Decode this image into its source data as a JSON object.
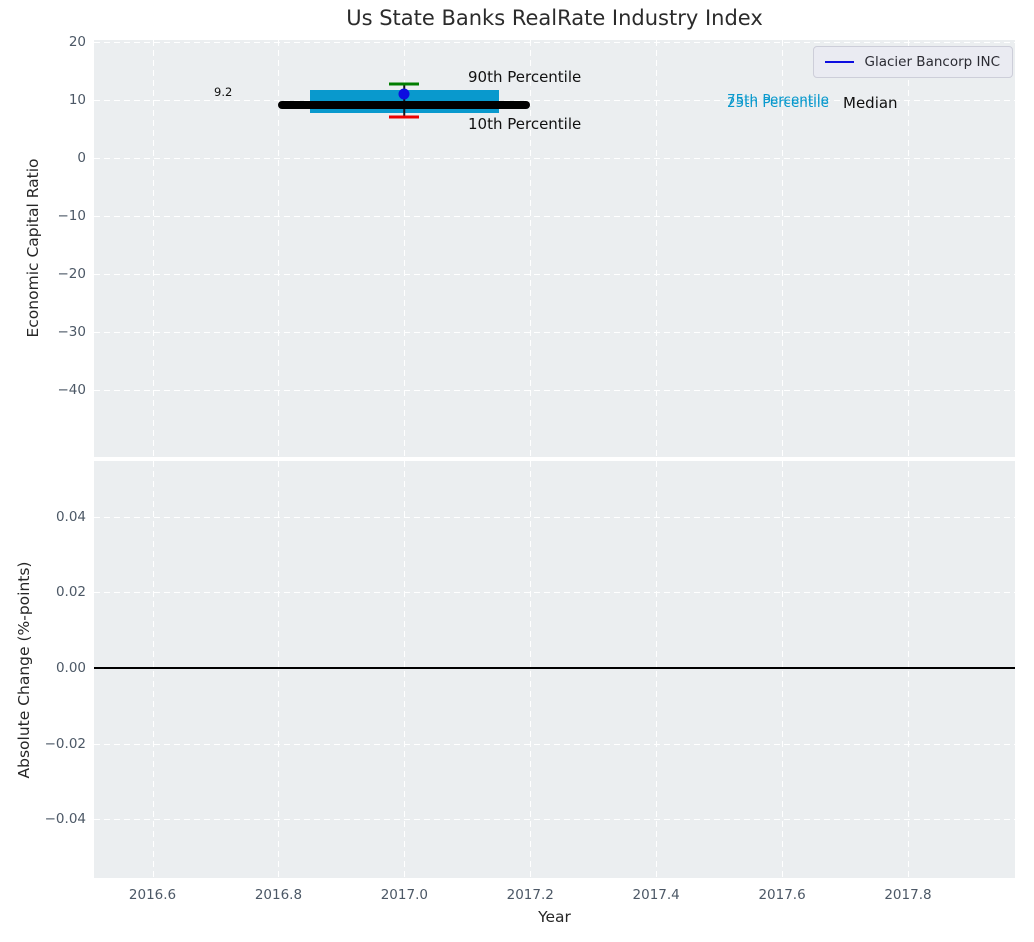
{
  "annotations_note": "all visible text lives below",
  "chart_data": [
    {
      "type": "box",
      "subplot": "top",
      "title": "Us State Banks RealRate Industry Index",
      "ylabel": "Economic Capital Ratio",
      "xlabel": "Year",
      "xlim": [
        2016.507,
        2017.97
      ],
      "ylim": [
        -51.5,
        20.35
      ],
      "xticks": [
        2016.6,
        2016.8,
        2017.0,
        2017.2,
        2017.4,
        2017.6,
        2017.8
      ],
      "xtick_labels": [
        "2016.6",
        "2016.8",
        "2017.0",
        "2017.2",
        "2017.4",
        "2017.6",
        "2017.8"
      ],
      "yticks": [
        20,
        10,
        0,
        -10,
        -20,
        -30,
        -40
      ],
      "ytick_labels": [
        "20",
        "10",
        "0",
        "−10",
        "−20",
        "−30",
        "−40"
      ],
      "grid": "white-dashed",
      "industry": {
        "year": 2017.0,
        "median": 9.2,
        "median_x_span": [
          2016.8,
          2017.2
        ],
        "p25": 7.8,
        "p75": 11.8,
        "box_x_span": [
          2016.85,
          2017.15
        ],
        "p10": 7.1,
        "p90": 12.7,
        "cap_half_width": 0.024
      },
      "series": [
        {
          "name": "Glacier Bancorp INC",
          "type": "point",
          "color": "#0d0de0",
          "x": [
            2017.0
          ],
          "y": [
            11.0
          ]
        }
      ],
      "legend": {
        "position": "upper right",
        "entries": [
          "Glacier Bancorp INC"
        ]
      },
      "annotations": {
        "p90": "90th Percentile",
        "p10": "10th Percentile",
        "p75": "75th Percentile",
        "p25": "25th Percentile",
        "median": "Median",
        "median_value": "9.2"
      }
    },
    {
      "type": "line",
      "subplot": "bottom",
      "ylabel": "Absolute Change (%-points)",
      "xlabel": "Year",
      "xlim": [
        2016.507,
        2017.97
      ],
      "ylim": [
        -0.0555,
        0.0547
      ],
      "xticks": [
        2016.6,
        2016.8,
        2017.0,
        2017.2,
        2017.4,
        2017.6,
        2017.8
      ],
      "xtick_labels": [
        "2016.6",
        "2016.8",
        "2017.0",
        "2017.2",
        "2017.4",
        "2017.6",
        "2017.8"
      ],
      "yticks": [
        0.04,
        0.02,
        0.0,
        -0.02,
        -0.04
      ],
      "ytick_labels": [
        "0.04",
        "0.02",
        "0.00",
        "−0.02",
        "−0.04"
      ],
      "hline": 0.0,
      "series": [],
      "grid": "white-dashed"
    }
  ],
  "colors": {
    "plot_background": "#ebeef0",
    "gridline": "#ffffff",
    "iqr_box": "#0999cd",
    "median_line": "#000000",
    "p90_cap": "#007d00",
    "p10_cap": "#ee0000",
    "company_point": "#0d0de0",
    "tick_text": "#4c5866",
    "axis_text": "#262626"
  }
}
